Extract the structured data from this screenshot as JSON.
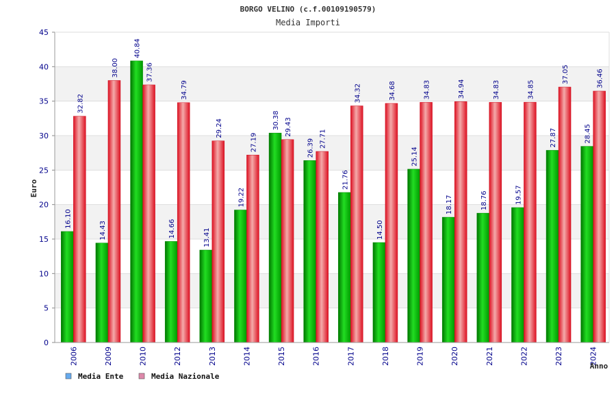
{
  "chart_data": {
    "type": "bar",
    "title": "BORGO VELINO (c.f.00109190579)",
    "subtitle": "Media Importi",
    "xlabel": "Anno",
    "ylabel": "Euro",
    "ylim": [
      0,
      45
    ],
    "yticks": [
      0,
      5,
      10,
      15,
      20,
      25,
      30,
      35,
      40,
      45
    ],
    "categories": [
      "2006",
      "2009",
      "2010",
      "2012",
      "2013",
      "2014",
      "2015",
      "2016",
      "2017",
      "2018",
      "2019",
      "2020",
      "2021",
      "2022",
      "2023",
      "2024"
    ],
    "series": [
      {
        "name": "Media Ente",
        "color": "#11bb11",
        "legend_color": "#66aaee",
        "values": [
          16.1,
          14.43,
          40.84,
          14.66,
          13.41,
          19.22,
          30.38,
          26.39,
          21.76,
          14.5,
          25.14,
          18.17,
          18.76,
          19.57,
          27.87,
          28.45
        ],
        "labels": [
          "16.10",
          "14.43",
          "40.84",
          "14.66",
          "13.41",
          "19.22",
          "30.38",
          "26.39",
          "21.76",
          "14.50",
          "25.14",
          "18.17",
          "18.76",
          "19.57",
          "27.87",
          "28.45"
        ]
      },
      {
        "name": "Media Nazionale",
        "color": "#e82233",
        "legend_color": "#dd88aa",
        "values": [
          32.82,
          38.0,
          37.36,
          34.79,
          29.24,
          27.19,
          29.43,
          27.71,
          34.32,
          34.68,
          34.83,
          34.94,
          34.83,
          34.85,
          37.05,
          36.46
        ],
        "labels": [
          "32.82",
          "38.00",
          "37.36",
          "34.79",
          "29.24",
          "27.19",
          "29.43",
          "27.71",
          "34.32",
          "34.68",
          "34.83",
          "34.94",
          "34.83",
          "34.85",
          "37.05",
          "36.46"
        ]
      }
    ],
    "grid": true,
    "legend_position": "bottom-left"
  }
}
